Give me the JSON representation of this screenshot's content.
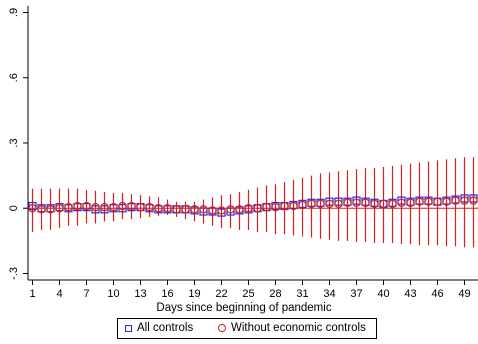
{
  "chart_data": {
    "type": "scatter",
    "title": "",
    "xlabel": "Days since beginning of pandemic",
    "ylabel": "",
    "x": [
      1,
      2,
      3,
      4,
      5,
      6,
      7,
      8,
      9,
      10,
      11,
      12,
      13,
      14,
      15,
      16,
      17,
      18,
      19,
      20,
      21,
      22,
      23,
      24,
      25,
      26,
      27,
      28,
      29,
      30,
      31,
      32,
      33,
      34,
      35,
      36,
      37,
      38,
      39,
      40,
      41,
      42,
      43,
      44,
      45,
      46,
      47,
      48,
      49,
      50
    ],
    "xticks": [
      1,
      4,
      7,
      10,
      13,
      16,
      19,
      22,
      25,
      28,
      31,
      34,
      37,
      40,
      43,
      46,
      49
    ],
    "xtick_labels": [
      "1",
      "4",
      "7",
      "10",
      "13",
      "16",
      "19",
      "22",
      "25",
      "28",
      "31",
      "34",
      "37",
      "40",
      "43",
      "46",
      "49"
    ],
    "yticks": [
      -0.3,
      0,
      0.3,
      0.6,
      0.9
    ],
    "ytick_labels": [
      "-.3",
      "0",
      ".3",
      ".6",
      ".9"
    ],
    "xlim": [
      0.5,
      50.5
    ],
    "ylim": [
      -0.33,
      0.93
    ],
    "grid": false,
    "legend_position": "bottom",
    "series": [
      {
        "name": "All controls",
        "marker": "square",
        "color": "#2a2ad4",
        "values": [
          0.01,
          0.0,
          0.0,
          0.005,
          0.0,
          0.005,
          0.005,
          -0.005,
          -0.005,
          0.0,
          0.0,
          0.005,
          0.005,
          0.0,
          -0.005,
          -0.005,
          -0.005,
          -0.005,
          -0.01,
          -0.015,
          -0.015,
          -0.02,
          -0.015,
          -0.01,
          -0.005,
          0.0,
          0.005,
          0.01,
          0.01,
          0.015,
          0.02,
          0.025,
          0.025,
          0.03,
          0.03,
          0.03,
          0.035,
          0.03,
          0.025,
          0.02,
          0.025,
          0.035,
          0.03,
          0.035,
          0.035,
          0.03,
          0.035,
          0.04,
          0.045,
          0.045
        ]
      },
      {
        "name": "Without economic controls",
        "marker": "circle",
        "color": "#d41f1f",
        "values": [
          0.0,
          -0.005,
          -0.005,
          0.0,
          0.005,
          0.01,
          0.01,
          0.005,
          0.005,
          0.005,
          0.01,
          0.01,
          0.005,
          0.005,
          0.0,
          0.0,
          -0.005,
          -0.005,
          -0.005,
          -0.005,
          -0.01,
          -0.01,
          -0.005,
          -0.005,
          0.0,
          0.0,
          0.005,
          0.005,
          0.01,
          0.01,
          0.015,
          0.02,
          0.02,
          0.02,
          0.02,
          0.025,
          0.025,
          0.025,
          0.02,
          0.02,
          0.02,
          0.025,
          0.025,
          0.03,
          0.03,
          0.03,
          0.03,
          0.035,
          0.035,
          0.035
        ],
        "ci_low": [
          -0.11,
          -0.1,
          -0.1,
          -0.09,
          -0.08,
          -0.08,
          -0.07,
          -0.07,
          -0.06,
          -0.06,
          -0.05,
          -0.05,
          -0.045,
          -0.04,
          -0.035,
          -0.03,
          -0.04,
          -0.05,
          -0.06,
          -0.07,
          -0.08,
          -0.09,
          -0.09,
          -0.1,
          -0.1,
          -0.11,
          -0.11,
          -0.12,
          -0.12,
          -0.125,
          -0.13,
          -0.135,
          -0.14,
          -0.145,
          -0.15,
          -0.15,
          -0.155,
          -0.155,
          -0.16,
          -0.16,
          -0.16,
          -0.165,
          -0.165,
          -0.17,
          -0.17,
          -0.17,
          -0.175,
          -0.175,
          -0.18,
          -0.18
        ],
        "ci_high": [
          0.09,
          0.09,
          0.09,
          0.09,
          0.09,
          0.09,
          0.085,
          0.08,
          0.075,
          0.07,
          0.07,
          0.065,
          0.06,
          0.055,
          0.05,
          0.04,
          0.03,
          0.03,
          0.03,
          0.04,
          0.05,
          0.06,
          0.065,
          0.075,
          0.085,
          0.095,
          0.105,
          0.11,
          0.12,
          0.13,
          0.14,
          0.15,
          0.16,
          0.165,
          0.17,
          0.175,
          0.18,
          0.185,
          0.185,
          0.19,
          0.195,
          0.2,
          0.205,
          0.21,
          0.215,
          0.22,
          0.225,
          0.23,
          0.235,
          0.235
        ]
      }
    ]
  }
}
